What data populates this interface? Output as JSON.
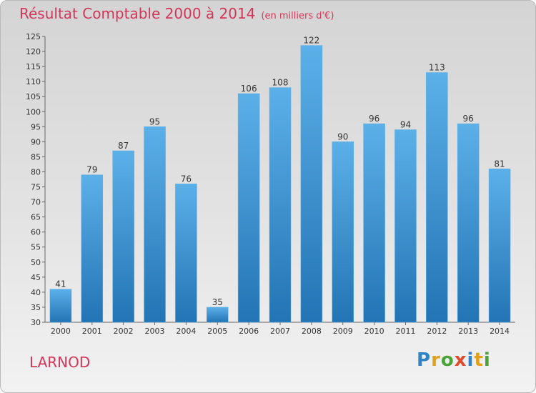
{
  "header": {
    "title": "Résultat Comptable 2000 à 2014",
    "unit": "(en milliers d'€)"
  },
  "footer": {
    "commune": "LARNOD",
    "logo_text": "Proxiti"
  },
  "colors": {
    "title": "#d4365a",
    "bar_light": "#5aaee6",
    "bar_dark": "#2477b8"
  },
  "chart_data": {
    "type": "bar",
    "title": "Résultat Comptable 2000 à 2014",
    "subtitle": "(en milliers d'€)",
    "categories": [
      "2000",
      "2001",
      "2002",
      "2003",
      "2004",
      "2005",
      "2006",
      "2007",
      "2008",
      "2009",
      "2010",
      "2011",
      "2012",
      "2013",
      "2014"
    ],
    "values": [
      41,
      79,
      87,
      95,
      76,
      35,
      106,
      108,
      122,
      90,
      96,
      94,
      113,
      96,
      81
    ],
    "ylim": [
      30,
      125
    ],
    "yticks": [
      30,
      35,
      40,
      45,
      50,
      55,
      60,
      65,
      70,
      75,
      80,
      85,
      90,
      95,
      100,
      105,
      110,
      115,
      120,
      125
    ],
    "grid": false,
    "data_labels": true
  }
}
